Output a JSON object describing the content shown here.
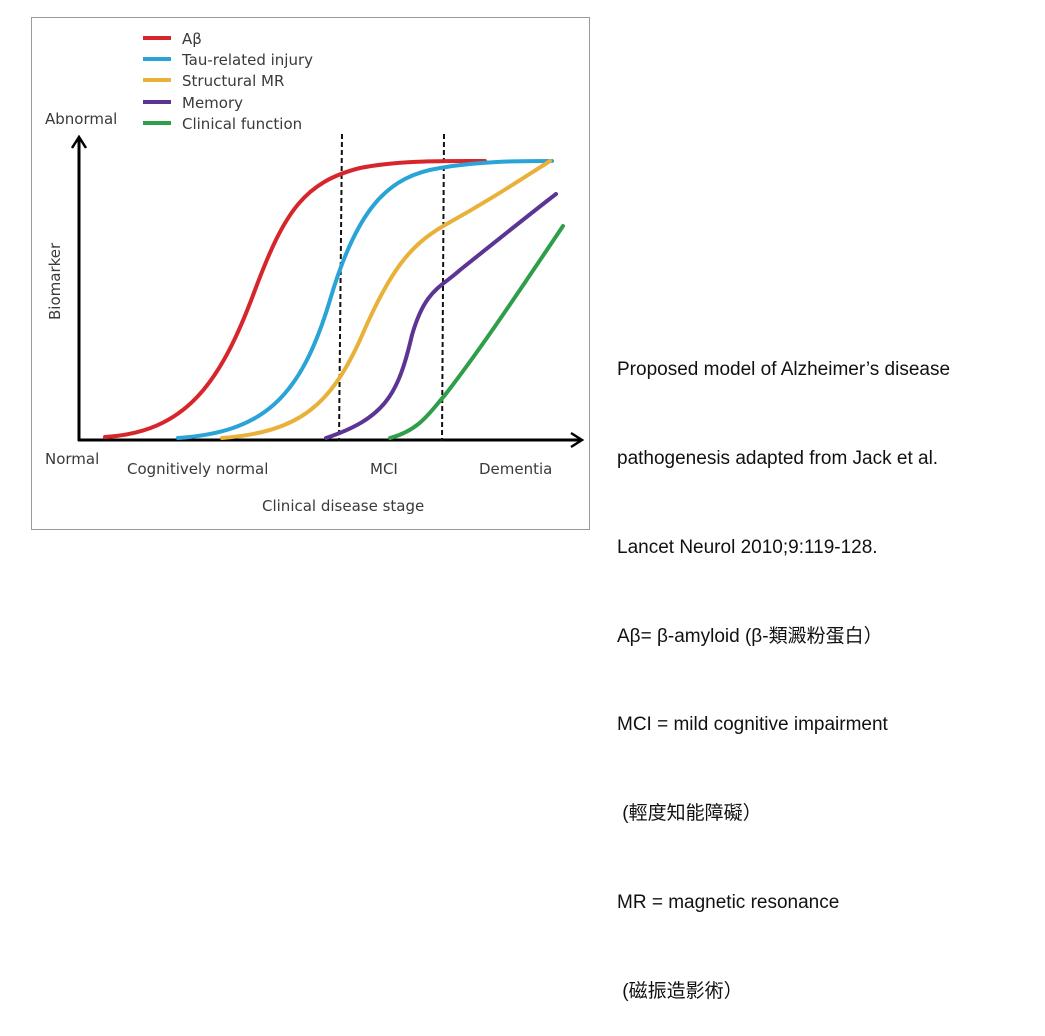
{
  "figure": {
    "y_axis": {
      "label": "Biomarker",
      "top": "Abnormal",
      "bottom": "Normal"
    },
    "x_axis": {
      "label": "Clinical disease stage",
      "stages": [
        "Cognitively normal",
        "MCI",
        "Dementia"
      ]
    },
    "legend": [
      {
        "label": "Aβ",
        "color": "#d7262b"
      },
      {
        "label": "Tau-related injury",
        "color": "#2aa3d6"
      },
      {
        "label": "Structural MR",
        "color": "#e9b13a"
      },
      {
        "label": "Memory",
        "color": "#5b3494"
      },
      {
        "label": "Clinical function",
        "color": "#2f9e4b"
      }
    ]
  },
  "caption": [
    "Proposed model of Alzheimer’s disease",
    "pathogenesis adapted from Jack et al.",
    "Lancet Neurol 2010;9:119-128.",
    "Aβ= β-amyloid (β-類澱粉蛋白）",
    "MCI = mild cognitive impairment",
    " (輕度知能障礙）",
    "MR = magnetic resonance",
    " (磁振造影術）"
  ]
}
